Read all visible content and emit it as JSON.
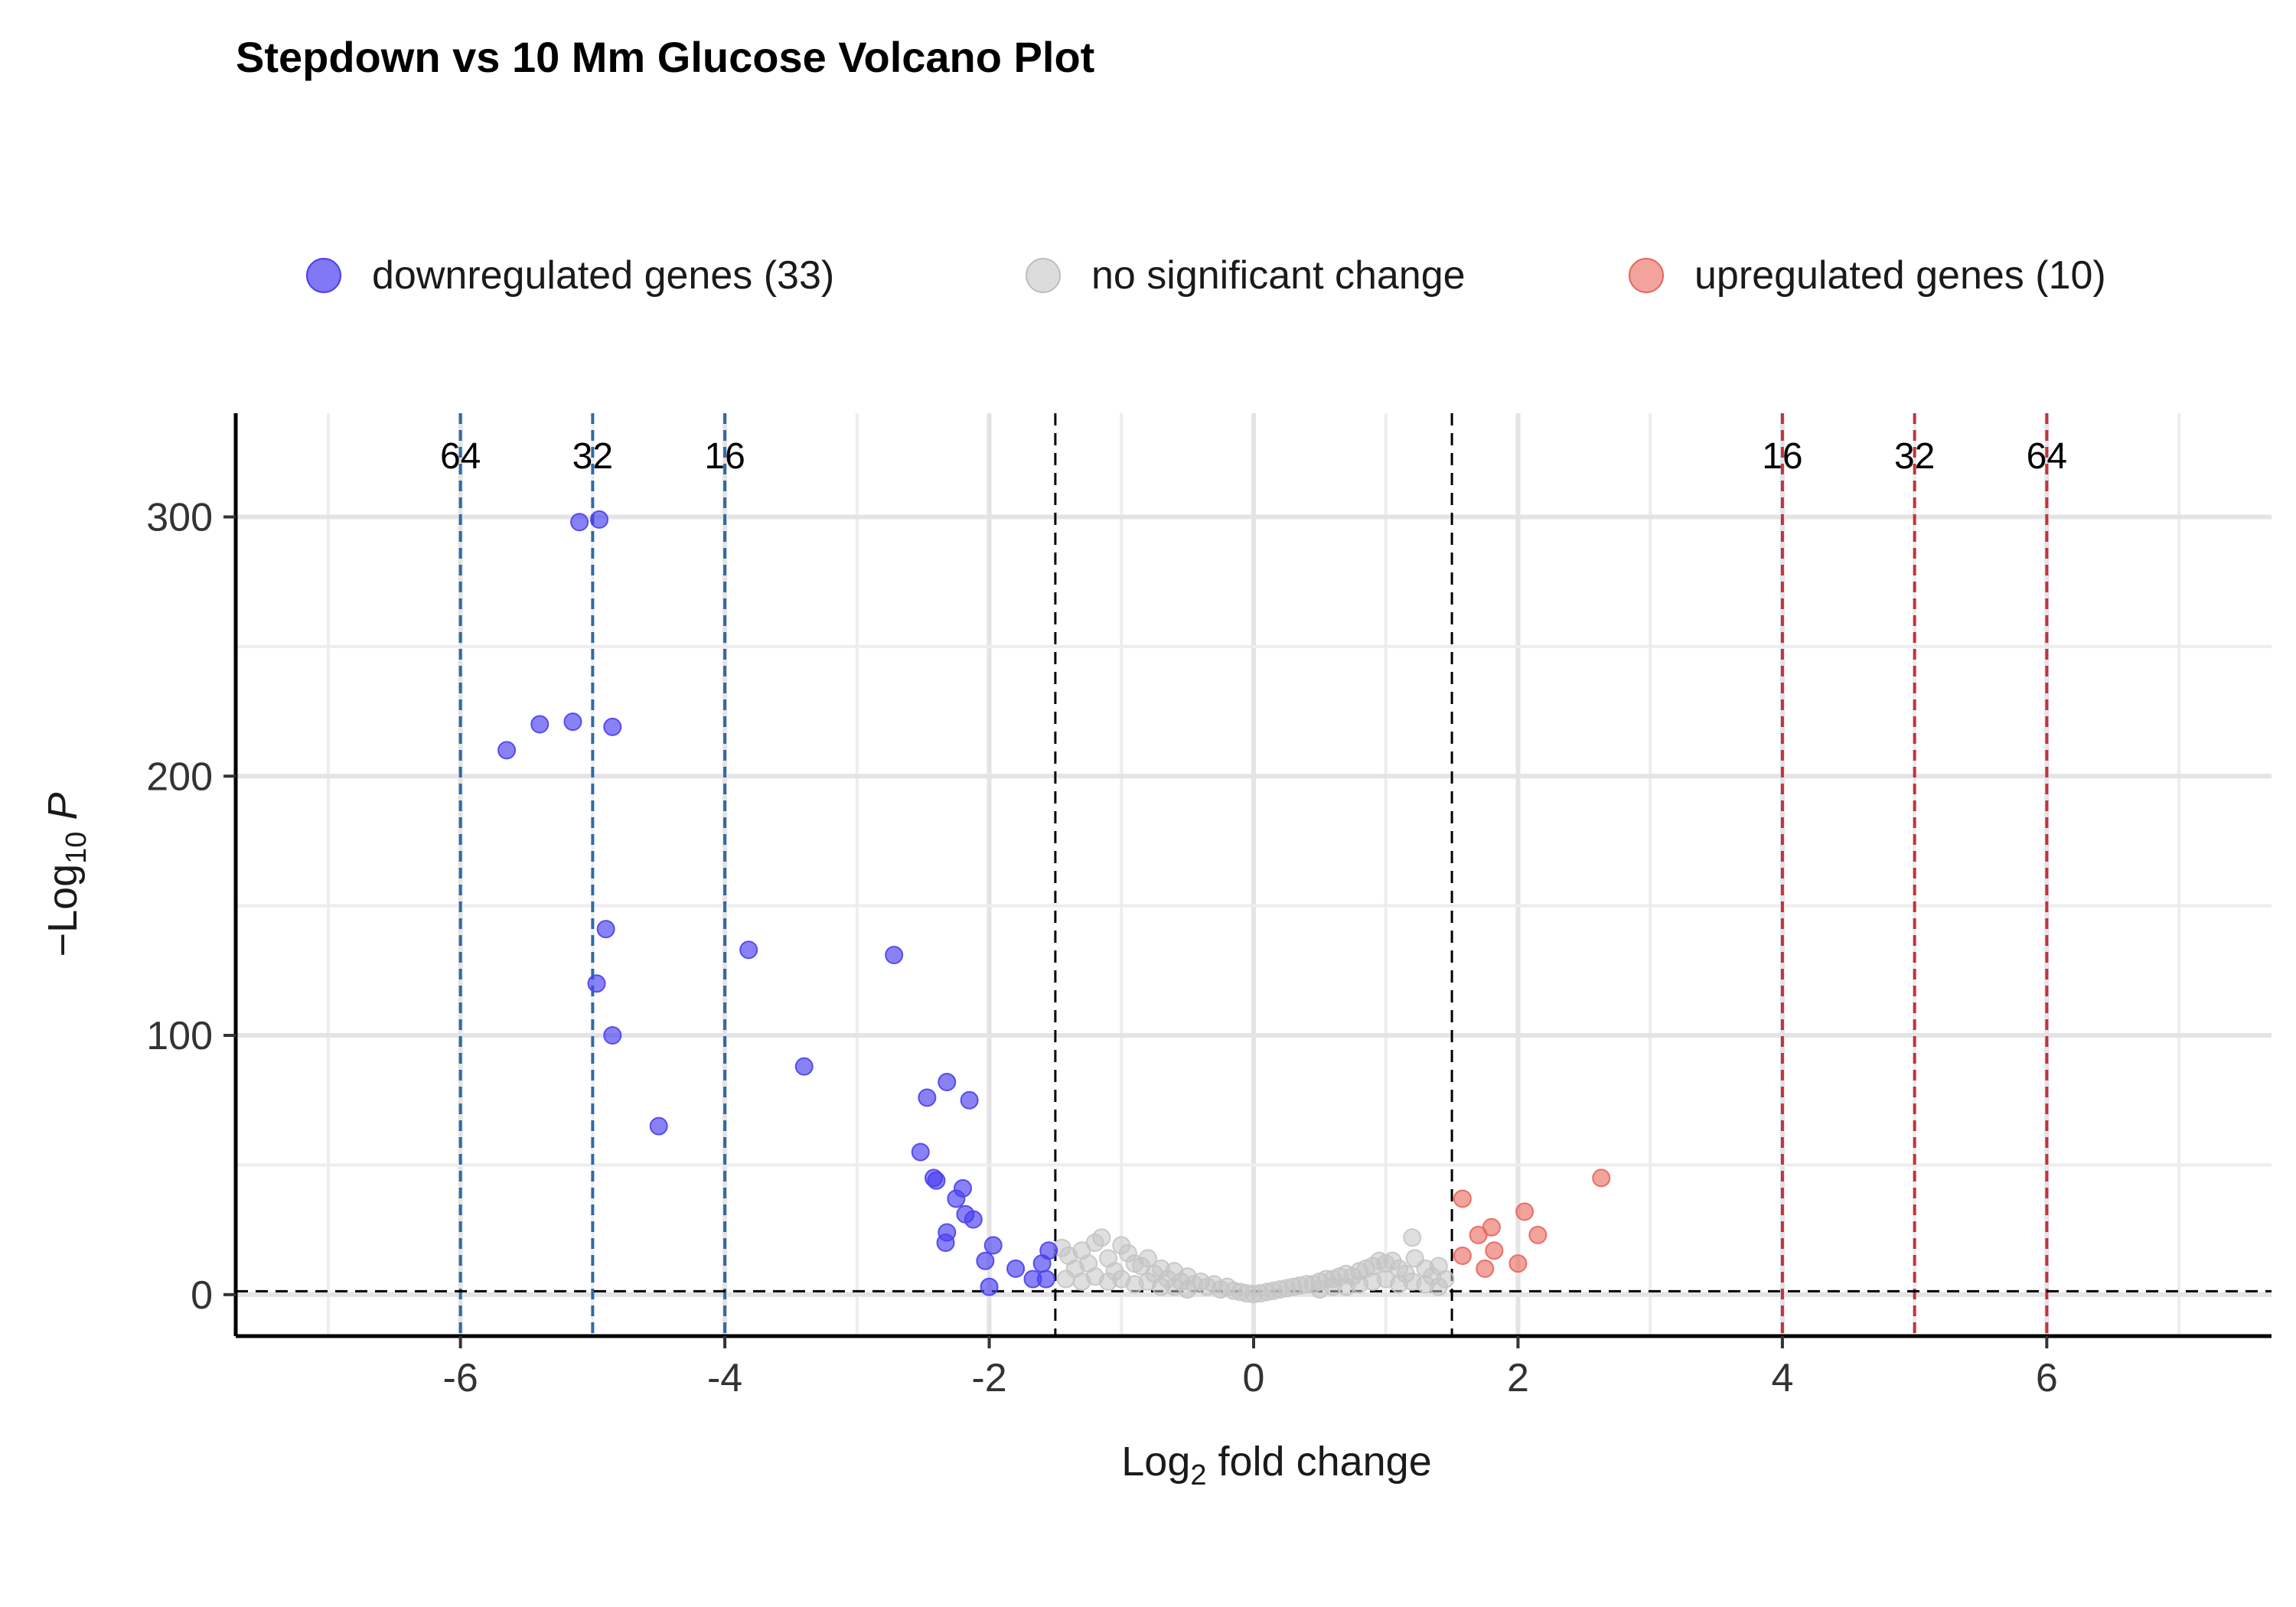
{
  "chart_data": {
    "type": "scatter",
    "title": "Stepdown vs 10 Mm Glucose Volcano Plot",
    "xlabel": {
      "prefix": "Log",
      "subscript": "2",
      "suffix": " fold change"
    },
    "ylabel": {
      "prefix": "−Log",
      "subscript": "10",
      "suffix": " P"
    },
    "xlim": [
      -7.7,
      7.7
    ],
    "ylim": [
      -16,
      340
    ],
    "x_ticks": [
      -6,
      -4,
      -2,
      0,
      2,
      4,
      6
    ],
    "y_ticks": [
      0,
      100,
      200,
      300
    ],
    "grid": true,
    "legend_position": "top",
    "fold_change_lines": [
      {
        "x": -6,
        "label": "64",
        "color": "#2e6aa8"
      },
      {
        "x": -5,
        "label": "32",
        "color": "#2e6aa8"
      },
      {
        "x": -4,
        "label": "16",
        "color": "#2e6aa8"
      },
      {
        "x": 4,
        "label": "16",
        "color": "#c0343a"
      },
      {
        "x": 5,
        "label": "32",
        "color": "#c0343a"
      },
      {
        "x": 6,
        "label": "64",
        "color": "#c0343a"
      }
    ],
    "thresholds": {
      "fc_cutoff": [
        -1.5,
        1.5
      ],
      "p_cutoff": 1.3
    },
    "series": [
      {
        "name": "downregulated genes (33)",
        "color": "#4a3ff0",
        "points": [
          [
            -5.1,
            298
          ],
          [
            -4.95,
            299
          ],
          [
            -5.65,
            210
          ],
          [
            -5.4,
            220
          ],
          [
            -5.15,
            221
          ],
          [
            -4.85,
            219
          ],
          [
            -4.9,
            141
          ],
          [
            -4.97,
            120
          ],
          [
            -4.85,
            100
          ],
          [
            -4.5,
            65
          ],
          [
            -3.82,
            133
          ],
          [
            -3.4,
            88
          ],
          [
            -2.72,
            131
          ],
          [
            -2.32,
            82
          ],
          [
            -2.47,
            76
          ],
          [
            -2.15,
            75
          ],
          [
            -2.52,
            55
          ],
          [
            -2.42,
            45
          ],
          [
            -2.4,
            44
          ],
          [
            -2.2,
            41
          ],
          [
            -2.25,
            37
          ],
          [
            -2.18,
            31
          ],
          [
            -2.12,
            29
          ],
          [
            -2.32,
            24
          ],
          [
            -2.33,
            20
          ],
          [
            -1.97,
            19
          ],
          [
            -2.03,
            13
          ],
          [
            -1.8,
            10
          ],
          [
            -1.55,
            17
          ],
          [
            -1.6,
            12
          ],
          [
            -1.67,
            6
          ],
          [
            -1.57,
            6
          ],
          [
            -2.0,
            3
          ]
        ]
      },
      {
        "name": "no significant change",
        "color": "#c4c4c4",
        "points": [
          [
            -1.45,
            18
          ],
          [
            -1.4,
            15
          ],
          [
            -1.35,
            10
          ],
          [
            -1.3,
            17
          ],
          [
            -1.25,
            12
          ],
          [
            -1.2,
            20
          ],
          [
            -1.15,
            22
          ],
          [
            -1.1,
            14
          ],
          [
            -1.05,
            9
          ],
          [
            -1.0,
            19
          ],
          [
            -0.95,
            16
          ],
          [
            -0.9,
            12
          ],
          [
            -0.85,
            11
          ],
          [
            -0.8,
            14
          ],
          [
            -0.75,
            8
          ],
          [
            -0.7,
            10
          ],
          [
            -0.65,
            6
          ],
          [
            -0.6,
            9
          ],
          [
            -0.55,
            5
          ],
          [
            -0.5,
            7
          ],
          [
            -0.45,
            4
          ],
          [
            -0.4,
            5
          ],
          [
            -0.35,
            3
          ],
          [
            -0.3,
            4
          ],
          [
            -0.25,
            2
          ],
          [
            -0.2,
            3
          ],
          [
            -0.15,
            1.5
          ],
          [
            -0.1,
            1
          ],
          [
            -0.05,
            0.5
          ],
          [
            0,
            0.2
          ],
          [
            0.05,
            0.5
          ],
          [
            0.1,
            1
          ],
          [
            0.15,
            1.5
          ],
          [
            0.2,
            2
          ],
          [
            0.25,
            2.5
          ],
          [
            0.3,
            3
          ],
          [
            0.35,
            3.5
          ],
          [
            0.4,
            4
          ],
          [
            0.45,
            4
          ],
          [
            0.5,
            5
          ],
          [
            0.55,
            6
          ],
          [
            0.6,
            6
          ],
          [
            0.65,
            7
          ],
          [
            0.7,
            8
          ],
          [
            0.75,
            7
          ],
          [
            0.8,
            9
          ],
          [
            0.85,
            10
          ],
          [
            0.9,
            11
          ],
          [
            0.95,
            13
          ],
          [
            1.0,
            12
          ],
          [
            1.05,
            13
          ],
          [
            1.1,
            10
          ],
          [
            1.15,
            8
          ],
          [
            1.2,
            22
          ],
          [
            1.22,
            14
          ],
          [
            1.3,
            10
          ],
          [
            1.35,
            7
          ],
          [
            1.4,
            11
          ],
          [
            1.45,
            6
          ],
          [
            -1.42,
            6
          ],
          [
            -1.3,
            5
          ],
          [
            -1.2,
            7
          ],
          [
            -1.1,
            5
          ],
          [
            -1.0,
            6
          ],
          [
            -0.9,
            4
          ],
          [
            -0.8,
            5
          ],
          [
            -0.7,
            3
          ],
          [
            -0.6,
            3
          ],
          [
            -0.5,
            2
          ],
          [
            0.5,
            2
          ],
          [
            0.6,
            3
          ],
          [
            0.7,
            3
          ],
          [
            0.8,
            4
          ],
          [
            0.9,
            5
          ],
          [
            1.0,
            6
          ],
          [
            1.1,
            4
          ],
          [
            1.2,
            5
          ],
          [
            1.3,
            4
          ],
          [
            1.4,
            3
          ]
        ]
      },
      {
        "name": "upregulated genes (10)",
        "color": "#e8655a",
        "points": [
          [
            2.63,
            45
          ],
          [
            1.58,
            37
          ],
          [
            2.05,
            32
          ],
          [
            1.8,
            26
          ],
          [
            1.7,
            23
          ],
          [
            2.15,
            23
          ],
          [
            1.82,
            17
          ],
          [
            1.58,
            15
          ],
          [
            2.0,
            12
          ],
          [
            1.75,
            10
          ]
        ]
      }
    ]
  }
}
